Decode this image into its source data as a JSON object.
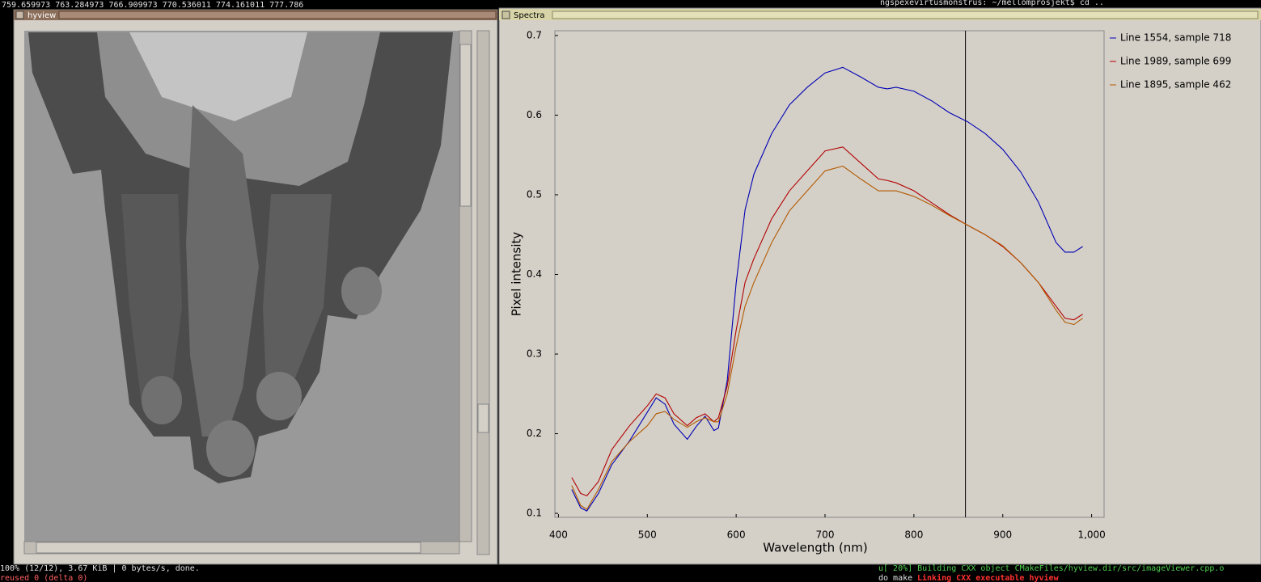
{
  "terminal": {
    "top_left": "759.659973 763.284973 766.909973 770.536011 774.161011 777.786",
    "top_right": "ngspexevirtusmonstrus: ~/mellomprosjekt$ cd ..",
    "bottom_left": [
      "100% (12/12), 3.67 KiB | 0 bytes/s, done.",
      "reused 0 (delta 0)"
    ],
    "bottom_right": [
      "u[ 20%] Building CXX object CMakeFiles/hyview.dir/src/imageViewer.cpp.o",
      "do make",
      "Linking CXX executable hyview"
    ]
  },
  "windows": {
    "image_title": "hyview",
    "spectra_title": "Spectra"
  },
  "chart_data": {
    "type": "line",
    "xlabel": "Wavelength (nm)",
    "ylabel": "Pixel intensity",
    "xlim": [
      396,
      1014
    ],
    "ylim": [
      0.095,
      0.706
    ],
    "xticks": [
      400,
      500,
      600,
      700,
      800,
      900,
      {
        "value": 1000,
        "label": "1,000"
      }
    ],
    "yticks": [
      0.1,
      0.2,
      0.3,
      0.4,
      0.5,
      0.6,
      0.7
    ],
    "marker_x": 858,
    "legend": "outside-right",
    "x": [
      415,
      425,
      432,
      445,
      460,
      480,
      500,
      510,
      520,
      530,
      545,
      555,
      565,
      575,
      580,
      590,
      600,
      610,
      620,
      640,
      660,
      680,
      700,
      720,
      740,
      760,
      770,
      780,
      800,
      820,
      840,
      860,
      880,
      900,
      920,
      940,
      960,
      970,
      980,
      990
    ],
    "series": [
      {
        "name": "Line 1554, sample 718",
        "color": "#0000b4",
        "values": [
          0.13,
          0.107,
          0.103,
          0.125,
          0.161,
          0.191,
          0.227,
          0.245,
          0.237,
          0.212,
          0.193,
          0.209,
          0.222,
          0.204,
          0.207,
          0.267,
          0.389,
          0.481,
          0.526,
          0.577,
          0.613,
          0.635,
          0.653,
          0.66,
          0.648,
          0.635,
          0.633,
          0.635,
          0.63,
          0.618,
          0.603,
          0.592,
          0.577,
          0.557,
          0.529,
          0.491,
          0.44,
          0.428,
          0.428,
          0.435
        ]
      },
      {
        "name": "Line 1989, sample 699",
        "color": "#b40000",
        "values": [
          0.145,
          0.125,
          0.122,
          0.14,
          0.18,
          0.21,
          0.235,
          0.25,
          0.245,
          0.225,
          0.21,
          0.22,
          0.225,
          0.215,
          0.22,
          0.26,
          0.33,
          0.39,
          0.42,
          0.47,
          0.505,
          0.53,
          0.555,
          0.56,
          0.54,
          0.52,
          0.518,
          0.515,
          0.505,
          0.49,
          0.475,
          0.462,
          0.45,
          0.435,
          0.415,
          0.39,
          0.36,
          0.345,
          0.343,
          0.35
        ]
      },
      {
        "name": "Line 1895, sample 462",
        "color": "#b45a00",
        "values": [
          0.135,
          0.11,
          0.105,
          0.13,
          0.165,
          0.19,
          0.21,
          0.225,
          0.228,
          0.218,
          0.208,
          0.215,
          0.22,
          0.215,
          0.215,
          0.25,
          0.31,
          0.36,
          0.39,
          0.44,
          0.48,
          0.505,
          0.53,
          0.536,
          0.52,
          0.505,
          0.505,
          0.505,
          0.498,
          0.487,
          0.474,
          0.462,
          0.45,
          0.436,
          0.415,
          0.39,
          0.355,
          0.34,
          0.337,
          0.345
        ]
      }
    ]
  }
}
